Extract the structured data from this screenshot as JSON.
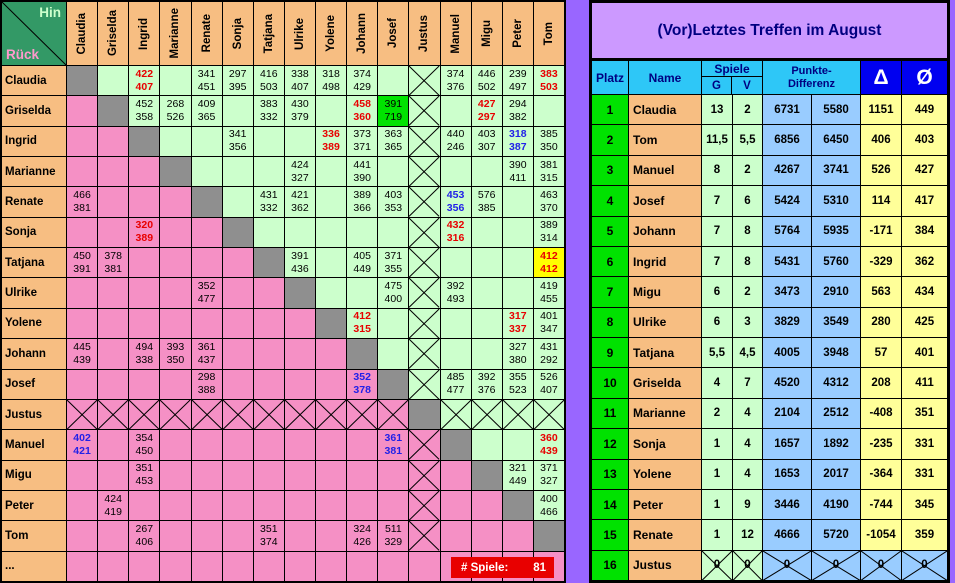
{
  "colors": {
    "corner_green": "#339966",
    "header_tan": "#F7BE82",
    "pink": "#F590C5",
    "light_green": "#CCFFCC",
    "diagonal_gray": "#8F8F8F",
    "highlight_green": "#00E200",
    "highlight_yellow": "#FFFF00",
    "red_value": "#E80000",
    "blue_value": "#2121E8",
    "title_lavender": "#CC99FF",
    "header_cyan": "#2EC7F7",
    "header_navy": "#000080",
    "symbol_blue": "#0000F0",
    "rank_green": "#00E200",
    "points_blue": "#99CCFF",
    "delta_yellow": "#FFFF99",
    "counter_red": "#E80000",
    "purple_strip": "#9966FF"
  },
  "corner": {
    "hin": "Hin",
    "rueck": "Rück"
  },
  "matrix": {
    "players": [
      "Claudia",
      "Griselda",
      "Ingrid",
      "Marianne",
      "Renate",
      "Sonja",
      "Tatjana",
      "Ulrike",
      "Yolene",
      "Johann",
      "Josef",
      "Justus",
      "Manuel",
      "Migu",
      "Peter",
      "Tom"
    ],
    "extra_row_label": "...",
    "cells": [
      {
        "r": 0,
        "c": 2,
        "hin": "422",
        "rueck": "407",
        "style": "red"
      },
      {
        "r": 0,
        "c": 4,
        "hin": "341",
        "rueck": "451"
      },
      {
        "r": 0,
        "c": 5,
        "hin": "297",
        "rueck": "395"
      },
      {
        "r": 0,
        "c": 6,
        "hin": "416",
        "rueck": "503"
      },
      {
        "r": 0,
        "c": 7,
        "hin": "338",
        "rueck": "407"
      },
      {
        "r": 0,
        "c": 8,
        "hin": "318",
        "rueck": "498"
      },
      {
        "r": 0,
        "c": 9,
        "hin": "374",
        "rueck": "429"
      },
      {
        "r": 0,
        "c": 12,
        "hin": "374",
        "rueck": "376"
      },
      {
        "r": 0,
        "c": 13,
        "hin": "446",
        "rueck": "502"
      },
      {
        "r": 0,
        "c": 14,
        "hin": "239",
        "rueck": "497"
      },
      {
        "r": 0,
        "c": 15,
        "hin": "383",
        "rueck": "503",
        "style": "red"
      },
      {
        "r": 1,
        "c": 2,
        "hin": "452",
        "rueck": "358"
      },
      {
        "r": 1,
        "c": 3,
        "hin": "268",
        "rueck": "526"
      },
      {
        "r": 1,
        "c": 4,
        "hin": "409",
        "rueck": "365"
      },
      {
        "r": 1,
        "c": 6,
        "hin": "383",
        "rueck": "332"
      },
      {
        "r": 1,
        "c": 7,
        "hin": "430",
        "rueck": "379"
      },
      {
        "r": 1,
        "c": 9,
        "hin": "458",
        "rueck": "360",
        "style": "red"
      },
      {
        "r": 1,
        "c": 10,
        "hin": "391",
        "rueck": "719",
        "style": "green-bg"
      },
      {
        "r": 1,
        "c": 13,
        "hin": "427",
        "rueck": "297",
        "style": "red"
      },
      {
        "r": 1,
        "c": 14,
        "hin": "294",
        "rueck": "382"
      },
      {
        "r": 2,
        "c": 5,
        "hin": "341",
        "rueck": "356"
      },
      {
        "r": 2,
        "c": 8,
        "hin": "336",
        "rueck": "389",
        "style": "red"
      },
      {
        "r": 2,
        "c": 9,
        "hin": "373",
        "rueck": "371"
      },
      {
        "r": 2,
        "c": 10,
        "hin": "363",
        "rueck": "365"
      },
      {
        "r": 2,
        "c": 12,
        "hin": "440",
        "rueck": "246"
      },
      {
        "r": 2,
        "c": 13,
        "hin": "403",
        "rueck": "307"
      },
      {
        "r": 2,
        "c": 14,
        "hin": "318",
        "rueck": "387",
        "style": "blue"
      },
      {
        "r": 2,
        "c": 15,
        "hin": "385",
        "rueck": "350"
      },
      {
        "r": 3,
        "c": 7,
        "hin": "424",
        "rueck": "327"
      },
      {
        "r": 3,
        "c": 9,
        "hin": "441",
        "rueck": "390"
      },
      {
        "r": 3,
        "c": 14,
        "hin": "390",
        "rueck": "411"
      },
      {
        "r": 3,
        "c": 15,
        "hin": "381",
        "rueck": "315"
      },
      {
        "r": 4,
        "c": 0,
        "hin": "466",
        "rueck": "381"
      },
      {
        "r": 4,
        "c": 6,
        "hin": "431",
        "rueck": "332"
      },
      {
        "r": 4,
        "c": 7,
        "hin": "421",
        "rueck": "362"
      },
      {
        "r": 4,
        "c": 9,
        "hin": "389",
        "rueck": "366"
      },
      {
        "r": 4,
        "c": 10,
        "hin": "403",
        "rueck": "353"
      },
      {
        "r": 4,
        "c": 12,
        "hin": "453",
        "rueck": "356",
        "style": "blue"
      },
      {
        "r": 4,
        "c": 13,
        "hin": "576",
        "rueck": "385"
      },
      {
        "r": 4,
        "c": 15,
        "hin": "463",
        "rueck": "370"
      },
      {
        "r": 5,
        "c": 2,
        "hin": "320",
        "rueck": "389",
        "style": "red"
      },
      {
        "r": 5,
        "c": 12,
        "hin": "432",
        "rueck": "316",
        "style": "red"
      },
      {
        "r": 5,
        "c": 15,
        "hin": "389",
        "rueck": "314"
      },
      {
        "r": 6,
        "c": 0,
        "hin": "450",
        "rueck": "391"
      },
      {
        "r": 6,
        "c": 1,
        "hin": "378",
        "rueck": "381"
      },
      {
        "r": 6,
        "c": 7,
        "hin": "391",
        "rueck": "436"
      },
      {
        "r": 6,
        "c": 9,
        "hin": "405",
        "rueck": "449"
      },
      {
        "r": 6,
        "c": 10,
        "hin": "371",
        "rueck": "355"
      },
      {
        "r": 6,
        "c": 15,
        "hin": "412",
        "rueck": "412",
        "style": "yellow-bg"
      },
      {
        "r": 7,
        "c": 4,
        "hin": "352",
        "rueck": "477"
      },
      {
        "r": 7,
        "c": 10,
        "hin": "475",
        "rueck": "400"
      },
      {
        "r": 7,
        "c": 12,
        "hin": "392",
        "rueck": "493"
      },
      {
        "r": 7,
        "c": 15,
        "hin": "419",
        "rueck": "455"
      },
      {
        "r": 8,
        "c": 9,
        "hin": "412",
        "rueck": "315",
        "style": "red"
      },
      {
        "r": 8,
        "c": 14,
        "hin": "317",
        "rueck": "337",
        "style": "red"
      },
      {
        "r": 8,
        "c": 15,
        "hin": "401",
        "rueck": "347"
      },
      {
        "r": 9,
        "c": 0,
        "hin": "445",
        "rueck": "439"
      },
      {
        "r": 9,
        "c": 2,
        "hin": "494",
        "rueck": "338"
      },
      {
        "r": 9,
        "c": 3,
        "hin": "393",
        "rueck": "350"
      },
      {
        "r": 9,
        "c": 4,
        "hin": "361",
        "rueck": "437"
      },
      {
        "r": 9,
        "c": 14,
        "hin": "327",
        "rueck": "380"
      },
      {
        "r": 9,
        "c": 15,
        "hin": "431",
        "rueck": "292"
      },
      {
        "r": 10,
        "c": 4,
        "hin": "298",
        "rueck": "388"
      },
      {
        "r": 10,
        "c": 9,
        "hin": "352",
        "rueck": "378",
        "style": "blue"
      },
      {
        "r": 10,
        "c": 12,
        "hin": "485",
        "rueck": "477"
      },
      {
        "r": 10,
        "c": 13,
        "hin": "392",
        "rueck": "376"
      },
      {
        "r": 10,
        "c": 14,
        "hin": "355",
        "rueck": "523"
      },
      {
        "r": 10,
        "c": 15,
        "hin": "526",
        "rueck": "407"
      },
      {
        "r": 12,
        "c": 0,
        "hin": "402",
        "rueck": "421",
        "style": "blue"
      },
      {
        "r": 12,
        "c": 2,
        "hin": "354",
        "rueck": "450"
      },
      {
        "r": 12,
        "c": 10,
        "hin": "361",
        "rueck": "381",
        "style": "blue"
      },
      {
        "r": 12,
        "c": 15,
        "hin": "360",
        "rueck": "439",
        "style": "red"
      },
      {
        "r": 13,
        "c": 2,
        "hin": "351",
        "rueck": "453"
      },
      {
        "r": 13,
        "c": 14,
        "hin": "321",
        "rueck": "449"
      },
      {
        "r": 13,
        "c": 15,
        "hin": "371",
        "rueck": "327"
      },
      {
        "r": 14,
        "c": 1,
        "hin": "424",
        "rueck": "419"
      },
      {
        "r": 14,
        "c": 15,
        "hin": "400",
        "rueck": "466"
      },
      {
        "r": 15,
        "c": 2,
        "hin": "267",
        "rueck": "406"
      },
      {
        "r": 15,
        "c": 6,
        "hin": "351",
        "rueck": "374"
      },
      {
        "r": 15,
        "c": 9,
        "hin": "324",
        "rueck": "426"
      },
      {
        "r": 15,
        "c": 10,
        "hin": "511",
        "rueck": "329"
      }
    ]
  },
  "spiele_counter": {
    "label": "# Spiele:",
    "value": "81"
  },
  "ranking": {
    "title": "(Vor)Letztes Treffen im August",
    "header": {
      "platz": "Platz",
      "name": "Name",
      "spiele": "Spiele",
      "g": "G",
      "v": "V",
      "punkte_line1": "Punkte-",
      "punkte_line2": "Differenz",
      "delta": "Δ",
      "avg": "Ø"
    },
    "rows": [
      {
        "platz": "1",
        "name": "Claudia",
        "g": "13",
        "v": "2",
        "p1": "6731",
        "p2": "5580",
        "delta": "1151",
        "avg": "449"
      },
      {
        "platz": "2",
        "name": "Tom",
        "g": "11,5",
        "v": "5,5",
        "p1": "6856",
        "p2": "6450",
        "delta": "406",
        "avg": "403"
      },
      {
        "platz": "3",
        "name": "Manuel",
        "g": "8",
        "v": "2",
        "p1": "4267",
        "p2": "3741",
        "delta": "526",
        "avg": "427"
      },
      {
        "platz": "4",
        "name": "Josef",
        "g": "7",
        "v": "6",
        "p1": "5424",
        "p2": "5310",
        "delta": "114",
        "avg": "417"
      },
      {
        "platz": "5",
        "name": "Johann",
        "g": "7",
        "v": "8",
        "p1": "5764",
        "p2": "5935",
        "delta": "-171",
        "avg": "384"
      },
      {
        "platz": "6",
        "name": "Ingrid",
        "g": "7",
        "v": "8",
        "p1": "5431",
        "p2": "5760",
        "delta": "-329",
        "avg": "362"
      },
      {
        "platz": "7",
        "name": "Migu",
        "g": "6",
        "v": "2",
        "p1": "3473",
        "p2": "2910",
        "delta": "563",
        "avg": "434"
      },
      {
        "platz": "8",
        "name": "Ulrike",
        "g": "6",
        "v": "3",
        "p1": "3829",
        "p2": "3549",
        "delta": "280",
        "avg": "425"
      },
      {
        "platz": "9",
        "name": "Tatjana",
        "g": "5,5",
        "v": "4,5",
        "p1": "4005",
        "p2": "3948",
        "delta": "57",
        "avg": "401"
      },
      {
        "platz": "10",
        "name": "Griselda",
        "g": "4",
        "v": "7",
        "p1": "4520",
        "p2": "4312",
        "delta": "208",
        "avg": "411"
      },
      {
        "platz": "11",
        "name": "Marianne",
        "g": "2",
        "v": "4",
        "p1": "2104",
        "p2": "2512",
        "delta": "-408",
        "avg": "351"
      },
      {
        "platz": "12",
        "name": "Sonja",
        "g": "1",
        "v": "4",
        "p1": "1657",
        "p2": "1892",
        "delta": "-235",
        "avg": "331"
      },
      {
        "platz": "13",
        "name": "Yolene",
        "g": "1",
        "v": "4",
        "p1": "1653",
        "p2": "2017",
        "delta": "-364",
        "avg": "331"
      },
      {
        "platz": "14",
        "name": "Peter",
        "g": "1",
        "v": "9",
        "p1": "3446",
        "p2": "4190",
        "delta": "-744",
        "avg": "345"
      },
      {
        "platz": "15",
        "name": "Renate",
        "g": "1",
        "v": "12",
        "p1": "4666",
        "p2": "5720",
        "delta": "-1054",
        "avg": "359"
      },
      {
        "platz": "16",
        "name": "Justus",
        "g": "0",
        "v": "0",
        "p1": "0",
        "p2": "0",
        "delta": "0",
        "avg": "0",
        "crossed": true
      }
    ]
  }
}
